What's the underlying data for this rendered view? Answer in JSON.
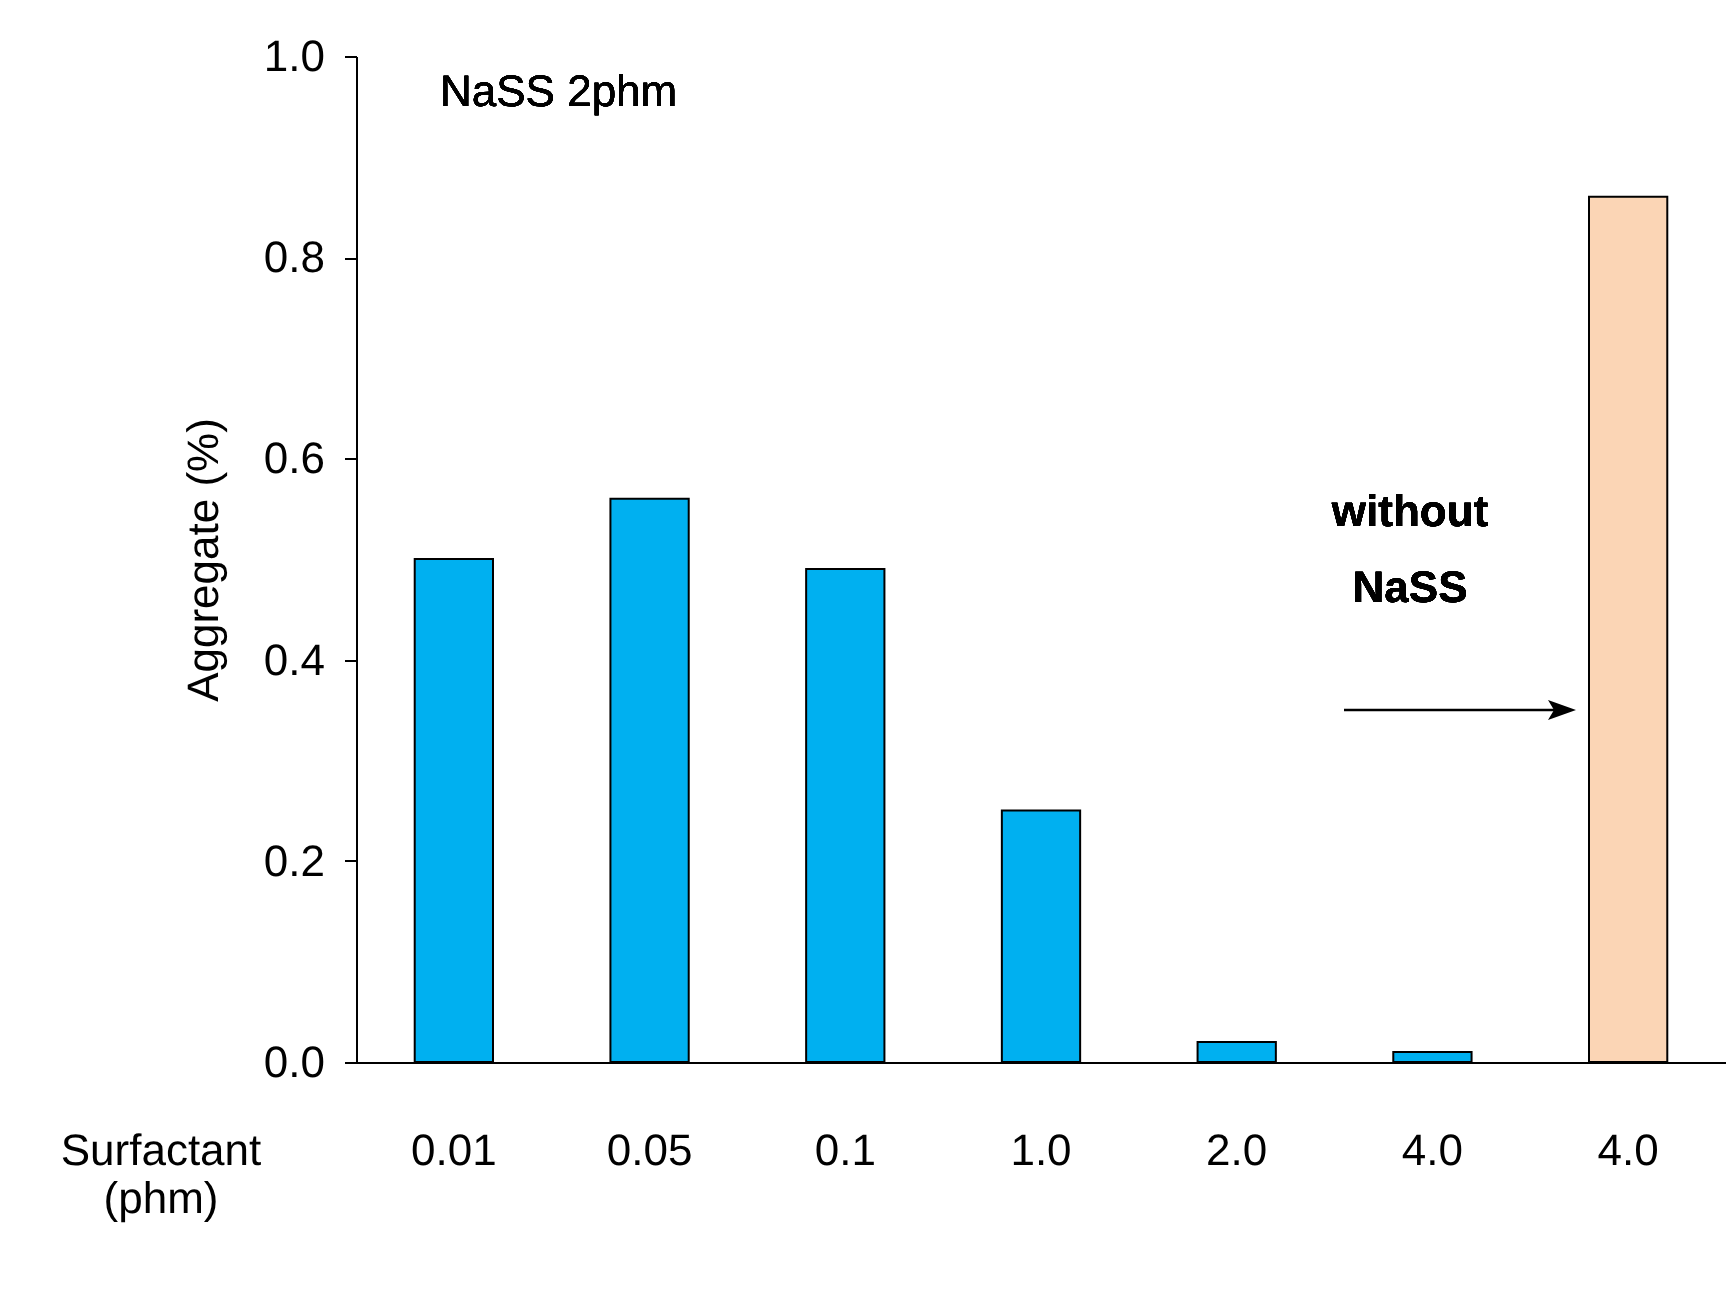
{
  "chart_data": {
    "type": "bar",
    "xlabel": "Surfactant (phm)",
    "ylabel": "Aggregate (%)",
    "categories": [
      "0.01",
      "0.05",
      "0.1",
      "1.0",
      "2.0",
      "4.0",
      "4.0"
    ],
    "values": [
      0.5,
      0.56,
      0.49,
      0.25,
      0.02,
      0.01,
      0.86
    ],
    "colors": [
      "#00b0f0",
      "#00b0f0",
      "#00b0f0",
      "#00b0f0",
      "#00b0f0",
      "#00b0f0",
      "#fbd5b5"
    ],
    "ylim": [
      0,
      1
    ],
    "yticks": [
      {
        "value": 0,
        "label": "0.0"
      },
      {
        "value": 0.2,
        "label": "0.2"
      },
      {
        "value": 0.4,
        "label": "0.4"
      },
      {
        "value": 0.6,
        "label": "0.6"
      },
      {
        "value": 0.8,
        "label": "0.8"
      },
      {
        "value": 1,
        "label": "1.0"
      }
    ],
    "annotations": [
      "NaSS 2phm",
      "without NaSS"
    ],
    "grid": false,
    "legend": false
  }
}
